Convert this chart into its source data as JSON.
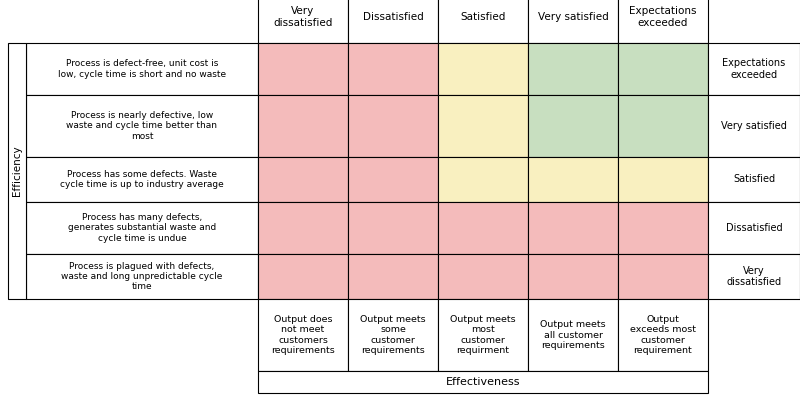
{
  "col_headers": [
    "Very\ndissatisfied",
    "Dissatisfied",
    "Satisfied",
    "Very satisfied",
    "Expectations\nexceeded"
  ],
  "row_labels": [
    "Process is defect-free, unit cost is\nlow, cycle time is short and no waste",
    "Process is nearly defective, low\nwaste and cycle time better than\nmost",
    "Process has some defects. Waste\ncycle time is up to industry average",
    "Process has many defects,\ngenerates substantial waste and\ncycle time is undue",
    "Process is plagued with defects,\nwaste and long unpredictable cycle\ntime"
  ],
  "row_right_labels": [
    "Expectations\nexceeded",
    "Very satisfied",
    "Satisfied",
    "Dissatisfied",
    "Very\ndissatisfied"
  ],
  "bottom_labels": [
    "Output does\nnot meet\ncustomers\nrequirements",
    "Output meets\nsome\ncustomer\nrequirements",
    "Output meets\nmost\ncustomer\nrequirment",
    "Output meets\nall customer\nrequirements",
    "Output\nexceeds most\ncustomer\nrequirement"
  ],
  "bottom_axis_label": "Effectiveness",
  "left_axis_label": "Efficiency",
  "cell_colors": [
    [
      "#F4BBBB",
      "#F4BBBB",
      "#F9F0C0",
      "#C8DFC0",
      "#C8DFC0"
    ],
    [
      "#F4BBBB",
      "#F4BBBB",
      "#F9F0C0",
      "#C8DFC0",
      "#C8DFC0"
    ],
    [
      "#F4BBBB",
      "#F4BBBB",
      "#F9F0C0",
      "#F9F0C0",
      "#F9F0C0"
    ],
    [
      "#F4BBBB",
      "#F4BBBB",
      "#F4BBBB",
      "#F4BBBB",
      "#F4BBBB"
    ],
    [
      "#F4BBBB",
      "#F4BBBB",
      "#F4BBBB",
      "#F4BBBB",
      "#F4BBBB"
    ]
  ],
  "figsize": [
    8.0,
    4.01
  ],
  "dpi": 100
}
